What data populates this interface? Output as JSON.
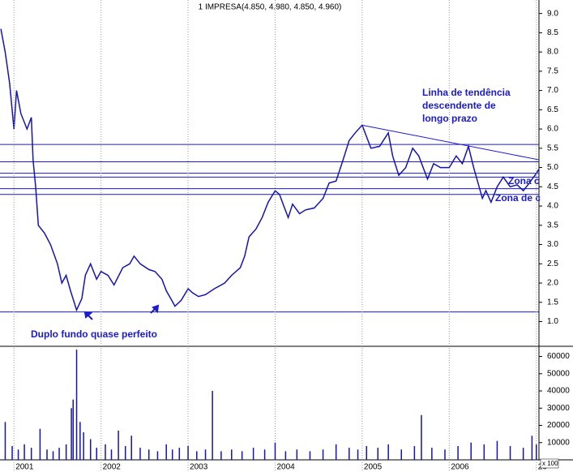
{
  "chart_data": [
    {
      "type": "line",
      "title": "1 IMPRESA(4.850, 4.980, 4.850, 4.960)",
      "color": "#1414b4",
      "x": [
        2000.85,
        2000.9,
        2000.95,
        2001.0,
        2001.03,
        2001.08,
        2001.15,
        2001.2,
        2001.22,
        2001.25,
        2001.28,
        2001.35,
        2001.42,
        2001.5,
        2001.55,
        2001.6,
        2001.65,
        2001.72,
        2001.78,
        2001.82,
        2001.88,
        2001.95,
        2002.0,
        2002.08,
        2002.15,
        2002.25,
        2002.33,
        2002.38,
        2002.45,
        2002.55,
        2002.62,
        2002.7,
        2002.75,
        2002.8,
        2002.85,
        2002.92,
        2003.0,
        2003.05,
        2003.12,
        2003.2,
        2003.3,
        2003.42,
        2003.5,
        2003.6,
        2003.65,
        2003.7,
        2003.78,
        2003.85,
        2003.92,
        2004.0,
        2004.05,
        2004.1,
        2004.15,
        2004.2,
        2004.28,
        2004.35,
        2004.45,
        2004.55,
        2004.62,
        2004.7,
        2004.78,
        2004.85,
        2004.92,
        2005.0,
        2005.05,
        2005.1,
        2005.2,
        2005.3,
        2005.35,
        2005.42,
        2005.5,
        2005.58,
        2005.65,
        2005.75,
        2005.82,
        2005.9,
        2006.0,
        2006.08,
        2006.15,
        2006.22,
        2006.28,
        2006.33,
        2006.38,
        2006.42,
        2006.48,
        2006.55,
        2006.62,
        2006.7,
        2006.78,
        2006.85,
        2006.92,
        2007.0,
        2007.03
      ],
      "values": [
        8.6,
        8.0,
        7.2,
        6.0,
        7.0,
        6.4,
        6.0,
        6.3,
        5.2,
        4.5,
        3.5,
        3.3,
        3.0,
        2.5,
        2.0,
        2.2,
        1.8,
        1.3,
        1.6,
        2.2,
        2.5,
        2.1,
        2.3,
        2.2,
        1.95,
        2.4,
        2.5,
        2.7,
        2.5,
        2.35,
        2.3,
        2.1,
        1.8,
        1.6,
        1.4,
        1.55,
        1.85,
        1.75,
        1.65,
        1.7,
        1.85,
        2.0,
        2.2,
        2.4,
        2.7,
        3.2,
        3.4,
        3.7,
        4.1,
        4.4,
        4.3,
        4.0,
        3.7,
        4.05,
        3.8,
        3.9,
        3.95,
        4.2,
        4.6,
        4.65,
        5.2,
        5.7,
        5.9,
        6.1,
        5.8,
        5.5,
        5.55,
        5.9,
        5.3,
        4.8,
        5.0,
        5.5,
        5.3,
        4.7,
        5.1,
        5.0,
        5.0,
        5.3,
        5.1,
        5.55,
        5.0,
        4.6,
        4.2,
        4.4,
        4.1,
        4.5,
        4.75,
        4.5,
        4.55,
        4.4,
        4.6,
        4.85,
        4.96
      ],
      "xlim": [
        2000.84,
        2007.03
      ],
      "ylim": [
        0.4,
        9.35
      ],
      "yticks": [
        {
          "value": 1,
          "label": "1.0"
        },
        {
          "value": 1.5,
          "label": "1.5"
        },
        {
          "value": 2,
          "label": "2.0"
        },
        {
          "value": 2.5,
          "label": "2.5"
        },
        {
          "value": 3,
          "label": "3.0"
        },
        {
          "value": 3.5,
          "label": "3.5"
        },
        {
          "value": 4,
          "label": "4.0"
        },
        {
          "value": 4.5,
          "label": "4.5"
        },
        {
          "value": 5,
          "label": "5.0"
        },
        {
          "value": 5.5,
          "label": "5.5"
        },
        {
          "value": 6,
          "label": "6.0"
        },
        {
          "value": 6.5,
          "label": "6.5"
        },
        {
          "value": 7,
          "label": "7.0"
        },
        {
          "value": 7.5,
          "label": "7.5"
        },
        {
          "value": 8,
          "label": "8.0"
        },
        {
          "value": 8.5,
          "label": "8.5"
        },
        {
          "value": 9,
          "label": "9.0"
        }
      ],
      "hlines": [
        5.6,
        5.15,
        4.85,
        4.75,
        4.45,
        4.3,
        1.25
      ],
      "hline_color": "#1a1ad0",
      "trendline": {
        "x": [
          2005.0,
          2007.03
        ],
        "y": [
          6.1,
          5.2
        ]
      },
      "annotations": [
        "Linha de tendência",
        "descendente de",
        "longo prazo",
        "Duplo fundo quase perfeito",
        "Zona c",
        "Zona de c"
      ]
    },
    {
      "type": "bar",
      "color": "#1414b4",
      "unit_label": "x 100",
      "x": [
        2000.9,
        2000.98,
        2001.05,
        2001.12,
        2001.2,
        2001.3,
        2001.38,
        2001.45,
        2001.52,
        2001.6,
        2001.66,
        2001.68,
        2001.72,
        2001.76,
        2001.8,
        2001.88,
        2001.95,
        2002.05,
        2002.12,
        2002.2,
        2002.28,
        2002.35,
        2002.45,
        2002.55,
        2002.65,
        2002.75,
        2002.82,
        2002.9,
        2003.0,
        2003.1,
        2003.2,
        2003.28,
        2003.38,
        2003.5,
        2003.62,
        2003.75,
        2003.88,
        2004.0,
        2004.12,
        2004.25,
        2004.4,
        2004.55,
        2004.7,
        2004.85,
        2004.95,
        2005.05,
        2005.18,
        2005.3,
        2005.45,
        2005.6,
        2005.68,
        2005.8,
        2005.95,
        2006.1,
        2006.25,
        2006.4,
        2006.55,
        2006.7,
        2006.85,
        2006.95,
        2007.0
      ],
      "values": [
        22000,
        8000,
        6000,
        9000,
        7000,
        18000,
        6000,
        5000,
        7000,
        9000,
        30000,
        35000,
        64000,
        22000,
        16000,
        12000,
        7000,
        9000,
        6000,
        17000,
        8000,
        14000,
        7000,
        6000,
        5000,
        9000,
        6000,
        7000,
        8000,
        5000,
        6000,
        40000,
        5000,
        6000,
        5000,
        7000,
        6000,
        10000,
        5000,
        6000,
        5000,
        6000,
        9000,
        7000,
        6000,
        8000,
        7000,
        9000,
        6000,
        8000,
        26000,
        7000,
        6000,
        8000,
        10000,
        9000,
        11000,
        8000,
        7000,
        14000,
        9000
      ],
      "xlim": [
        2000.84,
        2007.03
      ],
      "ylim": [
        0,
        64500
      ],
      "yticks": [
        10000,
        20000,
        30000,
        40000,
        50000,
        60000
      ],
      "xticks": [
        2001,
        2002,
        2003,
        2004,
        2005,
        2006,
        {
          "value": 2007,
          "label": "20"
        }
      ]
    }
  ]
}
